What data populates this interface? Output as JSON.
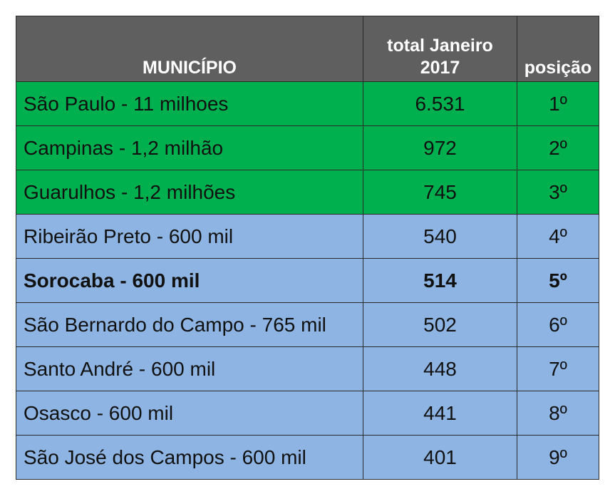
{
  "table": {
    "headers": {
      "municipio": "MUNICÍPIO",
      "total_line1": "total Janeiro",
      "total_line2": "2017",
      "posicao": "posição"
    },
    "colors": {
      "header_bg": "#5f5f5f",
      "top_rows_bg": "#00b04f",
      "other_rows_bg": "#8db4e2"
    },
    "rows": [
      {
        "municipio": "São Paulo - 11 milhoes",
        "total": "6.531",
        "posicao": "1º"
      },
      {
        "municipio": "Campinas - 1,2 milhão",
        "total": "972",
        "posicao": "2º"
      },
      {
        "municipio": "Guarulhos - 1,2 milhões",
        "total": "745",
        "posicao": "3º"
      },
      {
        "municipio": "Ribeirão Preto - 600 mil",
        "total": "540",
        "posicao": "4º"
      },
      {
        "municipio": "Sorocaba - 600 mil",
        "total": "514",
        "posicao": "5º"
      },
      {
        "municipio": "São Bernardo do Campo - 765 mil",
        "total": "502",
        "posicao": "6º"
      },
      {
        "municipio": "Santo André - 600 mil",
        "total": "448",
        "posicao": "7º"
      },
      {
        "municipio": "Osasco - 600 mil",
        "total": "441",
        "posicao": "8º"
      },
      {
        "municipio": "São José dos Campos - 600 mil",
        "total": "401",
        "posicao": "9º"
      }
    ]
  }
}
